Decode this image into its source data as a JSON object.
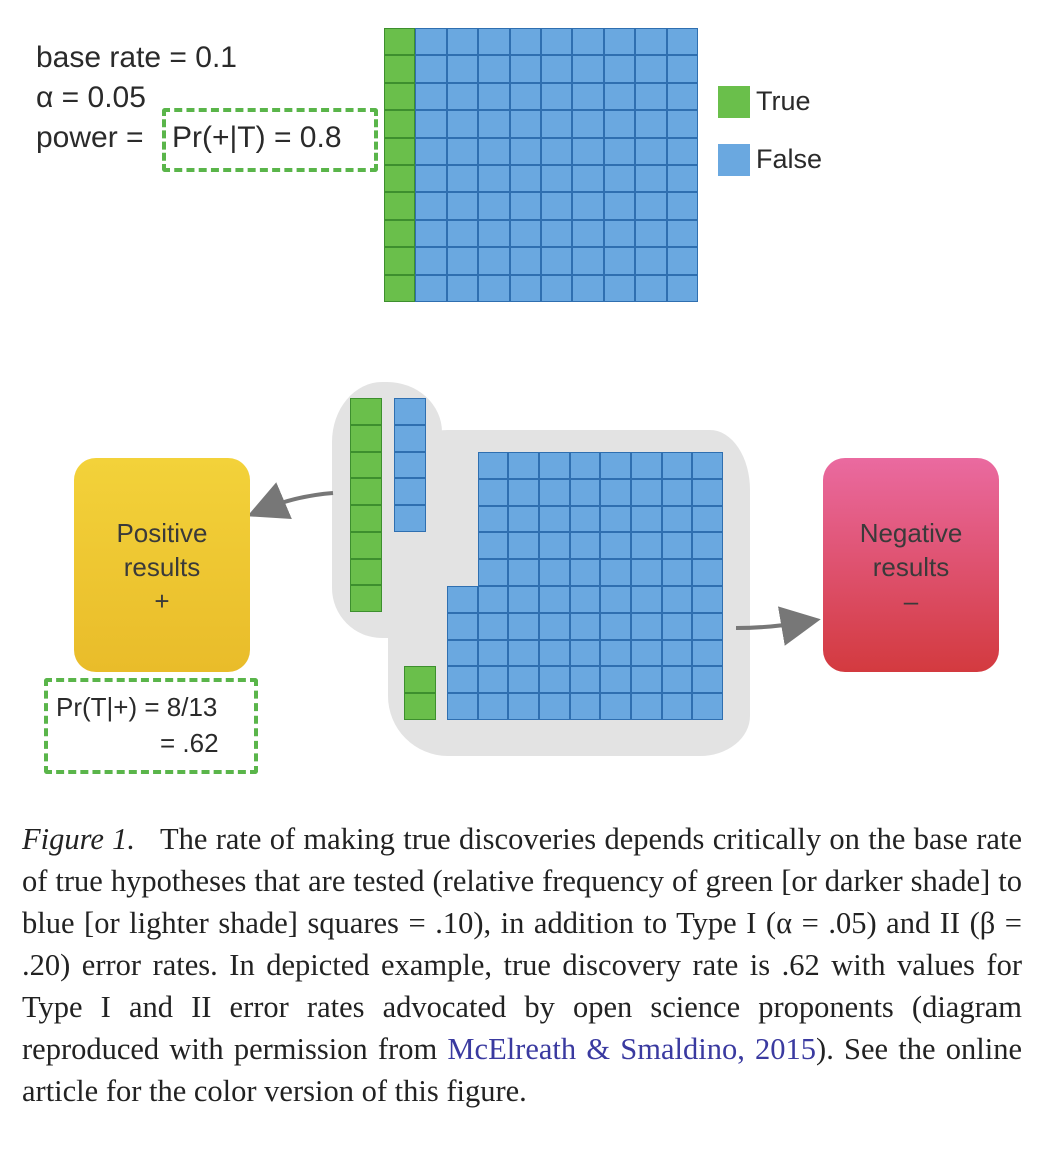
{
  "parameters": {
    "base_rate": "base rate = 0.1",
    "alpha": "α = 0.05",
    "power_prefix": "power =",
    "power_value": "Pr(+|T) = 0.8"
  },
  "legend": {
    "true_label": "True",
    "false_label": "False"
  },
  "colors": {
    "true_green": "#6abf4b",
    "false_blue": "#6aa8e0",
    "highlight_green": "#5ab54a",
    "positive_yellow": "#f1c930",
    "negative_red": "#d83a4a"
  },
  "population": {
    "true_count": 10,
    "false_count": 90
  },
  "positive_box": {
    "line1": "Positive",
    "line2": "results",
    "line3": "+"
  },
  "negative_box": {
    "line1": "Negative",
    "line2": "results",
    "line3": "–"
  },
  "positives": {
    "true_count": 8,
    "false_count": 5
  },
  "negatives": {
    "true_count": 2,
    "false_count": 85
  },
  "discovery": {
    "line1": "Pr(T|+) = 8/13",
    "line2": "= .62"
  },
  "caption": {
    "label": "Figure 1.",
    "text_before_link": "The rate of making true discoveries depends critically on the base rate of true hypotheses that are tested (relative frequency of green [or darker shade] to blue [or lighter shade] squares = .10), in addition to Type I (α = .05) and II (β = .20) error rates. In depicted example, true discovery rate is .62 with values for Type I and II error rates advocated by open science proponents (diagram reproduced with permission from",
    "link_text": "McElreath & Smaldino, 2015",
    "text_after_link": "). See the online article for the color version of this figure."
  }
}
